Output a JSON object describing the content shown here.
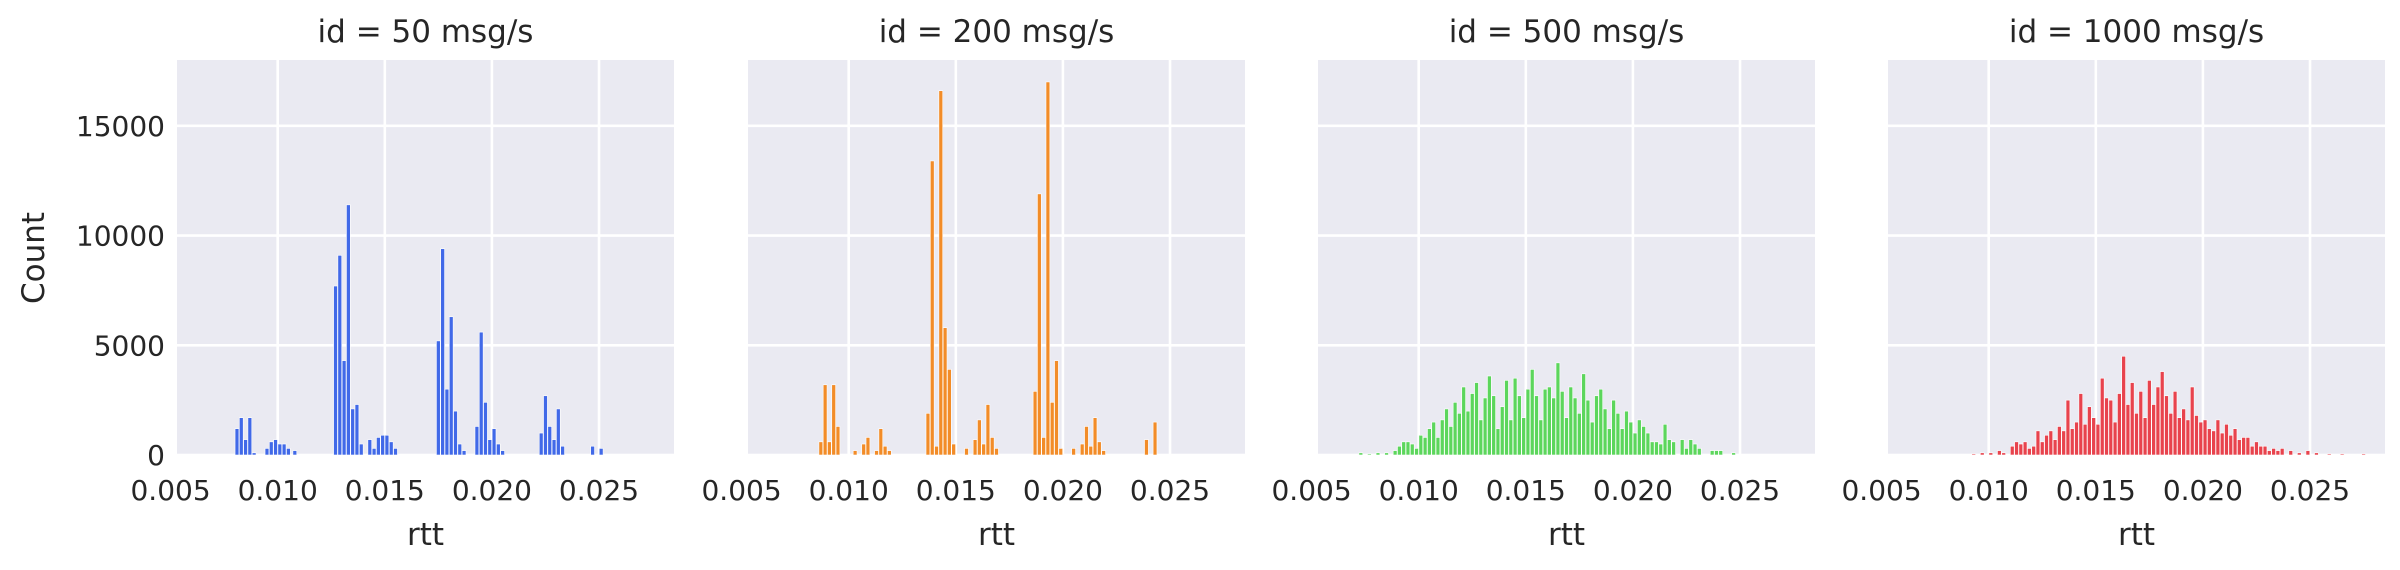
{
  "colors": {
    "panel_background": "#eaeaf2",
    "grid": "#ffffff",
    "text": "#262626"
  },
  "chart_data": [
    {
      "type": "bar",
      "title": "id = 50 msg/s",
      "xlabel": "rtt",
      "ylabel": "Count",
      "color": "#4169e8",
      "xlim": [
        0.0053,
        0.0285
      ],
      "ylim": [
        0,
        18000
      ],
      "xticks": [
        0.005,
        0.01,
        0.015,
        0.02,
        0.025
      ],
      "xtick_labels": [
        "0.005",
        "0.010",
        "0.015",
        "0.020",
        "0.025"
      ],
      "yticks": [
        0,
        5000,
        10000,
        15000
      ],
      "ytick_labels": [
        "0",
        "5000",
        "10000",
        "15000"
      ],
      "bin_width": 0.00018,
      "bins": [
        [
          0.0081,
          1200
        ],
        [
          0.0083,
          1700
        ],
        [
          0.0085,
          700
        ],
        [
          0.0087,
          1700
        ],
        [
          0.0089,
          100
        ],
        [
          0.0095,
          300
        ],
        [
          0.0097,
          600
        ],
        [
          0.0099,
          700
        ],
        [
          0.0101,
          500
        ],
        [
          0.0103,
          500
        ],
        [
          0.0105,
          300
        ],
        [
          0.0108,
          200
        ],
        [
          0.0127,
          7700
        ],
        [
          0.0129,
          9100
        ],
        [
          0.0131,
          4300
        ],
        [
          0.0133,
          11400
        ],
        [
          0.0135,
          2100
        ],
        [
          0.0137,
          2300
        ],
        [
          0.0139,
          500
        ],
        [
          0.0143,
          700
        ],
        [
          0.0145,
          300
        ],
        [
          0.0147,
          800
        ],
        [
          0.0149,
          900
        ],
        [
          0.0151,
          900
        ],
        [
          0.0153,
          600
        ],
        [
          0.0155,
          300
        ],
        [
          0.0175,
          5200
        ],
        [
          0.0177,
          9400
        ],
        [
          0.0179,
          3000
        ],
        [
          0.0181,
          6300
        ],
        [
          0.0183,
          2000
        ],
        [
          0.0185,
          500
        ],
        [
          0.0187,
          200
        ],
        [
          0.0193,
          1300
        ],
        [
          0.0195,
          5600
        ],
        [
          0.0197,
          2400
        ],
        [
          0.0199,
          700
        ],
        [
          0.0201,
          1200
        ],
        [
          0.0203,
          500
        ],
        [
          0.0205,
          200
        ],
        [
          0.0223,
          1000
        ],
        [
          0.0225,
          2700
        ],
        [
          0.0227,
          1300
        ],
        [
          0.0229,
          700
        ],
        [
          0.0231,
          2100
        ],
        [
          0.0233,
          400
        ],
        [
          0.0247,
          400
        ],
        [
          0.0251,
          300
        ]
      ]
    },
    {
      "type": "bar",
      "title": "id = 200 msg/s",
      "xlabel": "rtt",
      "color": "#f28c28",
      "xlim": [
        0.0053,
        0.0285
      ],
      "ylim": [
        0,
        18000
      ],
      "xticks": [
        0.005,
        0.01,
        0.015,
        0.02,
        0.025
      ],
      "xtick_labels": [
        "0.005",
        "0.010",
        "0.015",
        "0.020",
        "0.025"
      ],
      "yticks": [
        0,
        5000,
        10000,
        15000
      ],
      "bin_width": 0.00018,
      "bins": [
        [
          0.0087,
          600
        ],
        [
          0.0089,
          3200
        ],
        [
          0.0091,
          600
        ],
        [
          0.0093,
          3200
        ],
        [
          0.0095,
          1300
        ],
        [
          0.0103,
          200
        ],
        [
          0.0107,
          500
        ],
        [
          0.0109,
          800
        ],
        [
          0.0113,
          200
        ],
        [
          0.0115,
          1200
        ],
        [
          0.0117,
          400
        ],
        [
          0.0119,
          200
        ],
        [
          0.0137,
          1900
        ],
        [
          0.0139,
          13400
        ],
        [
          0.0141,
          400
        ],
        [
          0.0143,
          16600
        ],
        [
          0.0145,
          5800
        ],
        [
          0.0147,
          3900
        ],
        [
          0.0149,
          500
        ],
        [
          0.0155,
          300
        ],
        [
          0.0159,
          700
        ],
        [
          0.0161,
          1600
        ],
        [
          0.0163,
          500
        ],
        [
          0.0165,
          2300
        ],
        [
          0.0167,
          800
        ],
        [
          0.0169,
          300
        ],
        [
          0.0187,
          2900
        ],
        [
          0.0189,
          11900
        ],
        [
          0.0191,
          800
        ],
        [
          0.0193,
          17000
        ],
        [
          0.0195,
          2400
        ],
        [
          0.0197,
          4300
        ],
        [
          0.0199,
          300
        ],
        [
          0.0205,
          300
        ],
        [
          0.0209,
          500
        ],
        [
          0.0211,
          1300
        ],
        [
          0.0213,
          400
        ],
        [
          0.0215,
          1700
        ],
        [
          0.0217,
          600
        ],
        [
          0.0219,
          200
        ],
        [
          0.0239,
          700
        ],
        [
          0.0243,
          1500
        ]
      ]
    },
    {
      "type": "bar",
      "title": "id = 500 msg/s",
      "xlabel": "rtt",
      "color": "#5cd65c",
      "xlim": [
        0.0053,
        0.0285
      ],
      "ylim": [
        0,
        18000
      ],
      "xticks": [
        0.005,
        0.01,
        0.015,
        0.02,
        0.025
      ],
      "xtick_labels": [
        "0.005",
        "0.010",
        "0.015",
        "0.020",
        "0.025"
      ],
      "yticks": [
        0,
        5000,
        10000,
        15000
      ],
      "bin_width": 0.00018,
      "bins": [
        [
          0.0073,
          100
        ],
        [
          0.0077,
          50
        ],
        [
          0.0081,
          100
        ],
        [
          0.0085,
          100
        ],
        [
          0.0089,
          200
        ],
        [
          0.0091,
          400
        ],
        [
          0.0093,
          600
        ],
        [
          0.0095,
          600
        ],
        [
          0.0097,
          500
        ],
        [
          0.0099,
          300
        ],
        [
          0.0101,
          900
        ],
        [
          0.0103,
          800
        ],
        [
          0.0105,
          1200
        ],
        [
          0.0107,
          1500
        ],
        [
          0.0109,
          800
        ],
        [
          0.0111,
          1600
        ],
        [
          0.0113,
          2100
        ],
        [
          0.0115,
          1300
        ],
        [
          0.0117,
          2400
        ],
        [
          0.0119,
          1900
        ],
        [
          0.0121,
          3100
        ],
        [
          0.0123,
          2000
        ],
        [
          0.0125,
          2800
        ],
        [
          0.0127,
          3300
        ],
        [
          0.0129,
          1600
        ],
        [
          0.0131,
          2600
        ],
        [
          0.0133,
          3600
        ],
        [
          0.0135,
          2700
        ],
        [
          0.0137,
          1200
        ],
        [
          0.0139,
          2200
        ],
        [
          0.0141,
          3400
        ],
        [
          0.0143,
          1600
        ],
        [
          0.0145,
          3500
        ],
        [
          0.0147,
          2700
        ],
        [
          0.0149,
          1700
        ],
        [
          0.0151,
          3000
        ],
        [
          0.0153,
          3900
        ],
        [
          0.0155,
          2700
        ],
        [
          0.0157,
          1600
        ],
        [
          0.0159,
          3000
        ],
        [
          0.0161,
          3100
        ],
        [
          0.0163,
          2600
        ],
        [
          0.0165,
          4200
        ],
        [
          0.0167,
          2900
        ],
        [
          0.0169,
          1700
        ],
        [
          0.0171,
          3100
        ],
        [
          0.0173,
          2600
        ],
        [
          0.0175,
          1900
        ],
        [
          0.0177,
          3700
        ],
        [
          0.0179,
          2500
        ],
        [
          0.0181,
          1500
        ],
        [
          0.0183,
          2700
        ],
        [
          0.0185,
          3000
        ],
        [
          0.0187,
          2100
        ],
        [
          0.0189,
          1200
        ],
        [
          0.0191,
          2500
        ],
        [
          0.0193,
          1900
        ],
        [
          0.0195,
          1200
        ],
        [
          0.0197,
          2000
        ],
        [
          0.0199,
          1500
        ],
        [
          0.0201,
          1000
        ],
        [
          0.0203,
          1600
        ],
        [
          0.0205,
          1300
        ],
        [
          0.0207,
          1000
        ],
        [
          0.0209,
          600
        ],
        [
          0.0211,
          600
        ],
        [
          0.0213,
          500
        ],
        [
          0.0215,
          1400
        ],
        [
          0.0217,
          700
        ],
        [
          0.0219,
          600
        ],
        [
          0.0223,
          700
        ],
        [
          0.0225,
          300
        ],
        [
          0.0227,
          700
        ],
        [
          0.0229,
          500
        ],
        [
          0.0231,
          300
        ],
        [
          0.0237,
          200
        ],
        [
          0.0239,
          200
        ],
        [
          0.0241,
          200
        ],
        [
          0.0247,
          100
        ]
      ]
    },
    {
      "type": "bar",
      "title": "id = 1000 msg/s",
      "xlabel": "rtt",
      "color": "#e8434d",
      "xlim": [
        0.0053,
        0.0285
      ],
      "ylim": [
        0,
        18000
      ],
      "xticks": [
        0.005,
        0.01,
        0.015,
        0.02,
        0.025
      ],
      "xtick_labels": [
        "0.005",
        "0.010",
        "0.015",
        "0.020",
        "0.025"
      ],
      "yticks": [
        0,
        5000,
        10000,
        15000
      ],
      "bin_width": 0.00018,
      "bins": [
        [
          0.0093,
          50
        ],
        [
          0.0097,
          100
        ],
        [
          0.0101,
          100
        ],
        [
          0.0105,
          200
        ],
        [
          0.0107,
          100
        ],
        [
          0.0111,
          400
        ],
        [
          0.0113,
          600
        ],
        [
          0.0115,
          500
        ],
        [
          0.0117,
          600
        ],
        [
          0.0119,
          300
        ],
        [
          0.0121,
          400
        ],
        [
          0.0123,
          1100
        ],
        [
          0.0125,
          600
        ],
        [
          0.0127,
          900
        ],
        [
          0.0129,
          1100
        ],
        [
          0.0131,
          700
        ],
        [
          0.0133,
          1300
        ],
        [
          0.0135,
          1100
        ],
        [
          0.0137,
          2500
        ],
        [
          0.0139,
          1200
        ],
        [
          0.0141,
          1500
        ],
        [
          0.0143,
          2800
        ],
        [
          0.0145,
          1400
        ],
        [
          0.0147,
          2200
        ],
        [
          0.0149,
          1700
        ],
        [
          0.0151,
          1400
        ],
        [
          0.0153,
          3500
        ],
        [
          0.0155,
          2600
        ],
        [
          0.0157,
          2500
        ],
        [
          0.0159,
          1500
        ],
        [
          0.0161,
          2800
        ],
        [
          0.0163,
          4500
        ],
        [
          0.0165,
          2300
        ],
        [
          0.0167,
          3300
        ],
        [
          0.0169,
          1900
        ],
        [
          0.0171,
          2900
        ],
        [
          0.0173,
          1700
        ],
        [
          0.0175,
          3400
        ],
        [
          0.0177,
          2300
        ],
        [
          0.0179,
          3100
        ],
        [
          0.0181,
          3800
        ],
        [
          0.0183,
          2700
        ],
        [
          0.0185,
          1900
        ],
        [
          0.0187,
          2900
        ],
        [
          0.0189,
          1700
        ],
        [
          0.0191,
          2100
        ],
        [
          0.0193,
          1600
        ],
        [
          0.0195,
          3100
        ],
        [
          0.0197,
          1800
        ],
        [
          0.0199,
          1500
        ],
        [
          0.0201,
          1600
        ],
        [
          0.0203,
          1200
        ],
        [
          0.0205,
          1100
        ],
        [
          0.0207,
          1600
        ],
        [
          0.0209,
          1000
        ],
        [
          0.0211,
          1400
        ],
        [
          0.0213,
          900
        ],
        [
          0.0215,
          1200
        ],
        [
          0.0217,
          700
        ],
        [
          0.0219,
          800
        ],
        [
          0.0221,
          800
        ],
        [
          0.0223,
          400
        ],
        [
          0.0225,
          600
        ],
        [
          0.0227,
          400
        ],
        [
          0.0229,
          400
        ],
        [
          0.0231,
          200
        ],
        [
          0.0233,
          300
        ],
        [
          0.0235,
          200
        ],
        [
          0.0237,
          300
        ],
        [
          0.0241,
          200
        ],
        [
          0.0245,
          100
        ],
        [
          0.0249,
          200
        ],
        [
          0.0253,
          100
        ],
        [
          0.0259,
          50
        ],
        [
          0.0265,
          50
        ],
        [
          0.0275,
          50
        ]
      ]
    }
  ]
}
